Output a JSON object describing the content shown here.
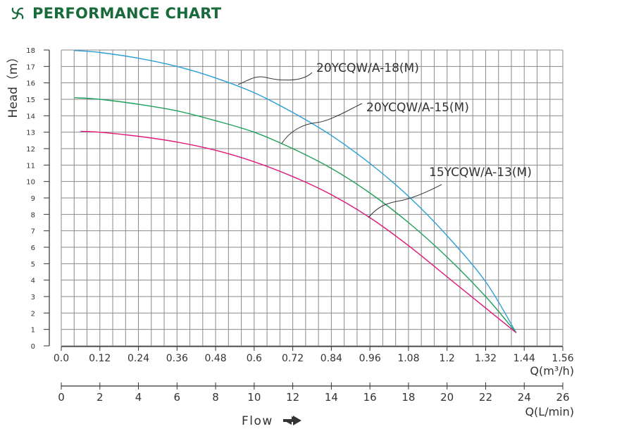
{
  "header": {
    "title": "PERFORMANCE CHART",
    "logo_icon": "swirl-logo-icon",
    "brand_color": "#1a6b3c"
  },
  "chart_data": {
    "type": "line",
    "title": "PERFORMANCE CHART",
    "ylabel": "Head（m）",
    "ylim": [
      0,
      18
    ],
    "yticks": [
      "0",
      "1",
      "2",
      "3",
      "4",
      "5",
      "6",
      "7",
      "8",
      "9",
      "10",
      "11",
      "12",
      "13",
      "14",
      "15",
      "16",
      "17",
      "18"
    ],
    "xlabel": "Q(m³/h)",
    "xlim": [
      0,
      1.56
    ],
    "xticks": [
      "0.0",
      "0.12",
      "0.24",
      "0.36",
      "0.48",
      "0.6",
      "0.72",
      "0.84",
      "0.96",
      "1.08",
      "1.2",
      "1.32",
      "1.44",
      "1.56"
    ],
    "x2label": "Q(L/min)",
    "x2lim": [
      0,
      26
    ],
    "x2ticks": [
      "0",
      "2",
      "4",
      "6",
      "8",
      "10",
      "12",
      "14",
      "16",
      "18",
      "20",
      "22",
      "24",
      "26"
    ],
    "grid": true,
    "flow_label": "Flow",
    "series": [
      {
        "name": "20YCQW/A-18(M)",
        "color": "#2a9fd6",
        "x": [
          0.04,
          0.12,
          0.24,
          0.36,
          0.48,
          0.6,
          0.72,
          0.84,
          0.96,
          1.08,
          1.2,
          1.32,
          1.415
        ],
        "y": [
          17.97,
          17.85,
          17.5,
          17.0,
          16.3,
          15.4,
          14.2,
          12.8,
          11.1,
          9.1,
          6.7,
          3.9,
          0.8
        ]
      },
      {
        "name": "20YCQW/A-15(M)",
        "color": "#1ea05a",
        "x": [
          0.04,
          0.12,
          0.24,
          0.36,
          0.48,
          0.6,
          0.72,
          0.84,
          0.96,
          1.08,
          1.2,
          1.32,
          1.415
        ],
        "y": [
          15.1,
          15.0,
          14.7,
          14.3,
          13.7,
          13.0,
          12.0,
          10.8,
          9.3,
          7.5,
          5.4,
          3.0,
          0.8
        ]
      },
      {
        "name": "15YCQW/A-13(M)",
        "color": "#e0187a",
        "x": [
          0.06,
          0.12,
          0.24,
          0.36,
          0.48,
          0.6,
          0.72,
          0.84,
          0.96,
          1.08,
          1.2,
          1.32,
          1.415
        ],
        "y": [
          13.05,
          13.0,
          12.75,
          12.4,
          11.9,
          11.2,
          10.3,
          9.2,
          7.8,
          6.1,
          4.2,
          2.3,
          0.8
        ]
      }
    ],
    "annotations": [
      {
        "text": "20YCQW/A-18(M)",
        "points_to": {
          "x": 0.55,
          "y": 15.9
        }
      },
      {
        "text": "20YCQW/A-15(M)",
        "points_to": {
          "x": 0.685,
          "y": 12.3
        }
      },
      {
        "text": "15YCQW/A-13(M)",
        "points_to": {
          "x": 0.955,
          "y": 7.8
        }
      }
    ]
  }
}
